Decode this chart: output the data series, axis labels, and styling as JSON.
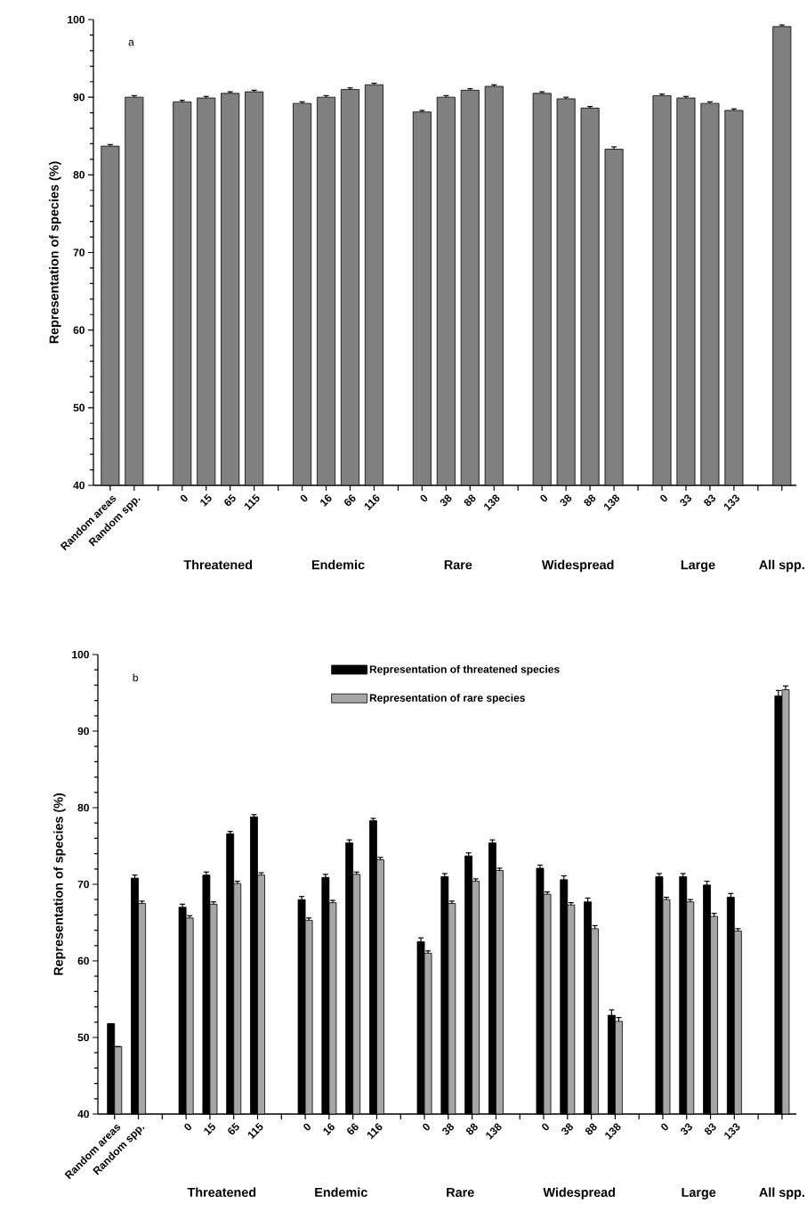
{
  "chart_data": [
    {
      "type": "bar",
      "ylabel": "Representation of species (%)",
      "categories": [
        "Random areas",
        "Random spp.",
        null,
        "0",
        "15",
        "65",
        "115",
        null,
        "0",
        "16",
        "66",
        "116",
        null,
        "0",
        "38",
        "88",
        "138",
        null,
        "0",
        "38",
        "88",
        "138",
        null,
        "0",
        "33",
        "83",
        "133",
        null,
        null
      ],
      "series": [
        {
          "color": "#808080",
          "values": [
            83.7,
            90.0,
            null,
            89.4,
            89.9,
            90.5,
            90.7,
            null,
            89.2,
            90.0,
            91.0,
            91.6,
            null,
            88.1,
            90.0,
            90.9,
            91.4,
            null,
            90.5,
            89.8,
            88.6,
            83.3,
            null,
            90.2,
            89.9,
            89.2,
            88.3,
            null,
            99.1
          ],
          "errors": [
            0.2,
            0.2,
            null,
            0.2,
            0.2,
            0.2,
            0.2,
            null,
            0.2,
            0.2,
            0.2,
            0.2,
            null,
            0.2,
            0.2,
            0.2,
            0.2,
            null,
            0.2,
            0.2,
            0.2,
            0.3,
            null,
            0.2,
            0.2,
            0.2,
            0.2,
            null,
            0.2
          ]
        }
      ],
      "ylim": [
        40,
        100
      ],
      "yticks": [
        40,
        50,
        60,
        70,
        80,
        90,
        100
      ],
      "legend": false,
      "annotations": [
        "a",
        "Threatened",
        "Endemic",
        "Rare",
        "Widespread",
        "Large",
        "All spp."
      ]
    },
    {
      "type": "bar",
      "ylabel": "Representation of species (%)",
      "categories": [
        "Random areas",
        "Random spp.",
        null,
        "0",
        "15",
        "65",
        "115",
        null,
        "0",
        "16",
        "66",
        "116",
        null,
        "0",
        "38",
        "88",
        "138",
        null,
        "0",
        "38",
        "88",
        "138",
        null,
        "0",
        "33",
        "83",
        "133",
        null,
        null
      ],
      "series": [
        {
          "name": "Representation of threatened species",
          "color": "#000000",
          "values": [
            51.8,
            70.8,
            null,
            67.0,
            71.2,
            76.6,
            78.8,
            null,
            68.0,
            70.9,
            75.4,
            78.3,
            null,
            62.5,
            71.0,
            73.7,
            75.4,
            null,
            72.1,
            70.6,
            67.7,
            52.9,
            null,
            71.0,
            71.0,
            69.9,
            68.3,
            null,
            94.6
          ],
          "errors": [
            null,
            0.4,
            null,
            0.4,
            0.4,
            0.3,
            0.3,
            null,
            0.4,
            0.4,
            0.4,
            0.3,
            null,
            0.5,
            0.4,
            0.4,
            0.4,
            null,
            0.4,
            0.5,
            0.5,
            0.7,
            null,
            0.4,
            0.4,
            0.5,
            0.5,
            null,
            0.7
          ]
        },
        {
          "name": "Representation of rare species",
          "color": "#a6a6a6",
          "values": [
            48.8,
            67.5,
            null,
            65.6,
            67.4,
            70.1,
            71.2,
            null,
            65.3,
            67.6,
            71.3,
            73.2,
            null,
            61.0,
            67.5,
            70.4,
            71.8,
            null,
            68.7,
            67.3,
            64.2,
            52.1,
            null,
            68.0,
            67.7,
            65.8,
            63.9,
            null,
            95.4
          ],
          "errors": [
            null,
            0.3,
            null,
            0.3,
            0.3,
            0.3,
            0.3,
            null,
            0.3,
            0.3,
            0.3,
            0.3,
            null,
            0.3,
            0.3,
            0.3,
            0.3,
            null,
            0.3,
            0.3,
            0.4,
            0.5,
            null,
            0.3,
            0.3,
            0.4,
            0.3,
            null,
            0.5
          ]
        }
      ],
      "ylim": [
        40,
        100
      ],
      "yticks": [
        40,
        50,
        60,
        70,
        80,
        90,
        100
      ],
      "legend": "top",
      "annotations": [
        "b",
        "Threatened",
        "Endemic",
        "Rare",
        "Widespread",
        "Large",
        "All spp."
      ]
    }
  ]
}
